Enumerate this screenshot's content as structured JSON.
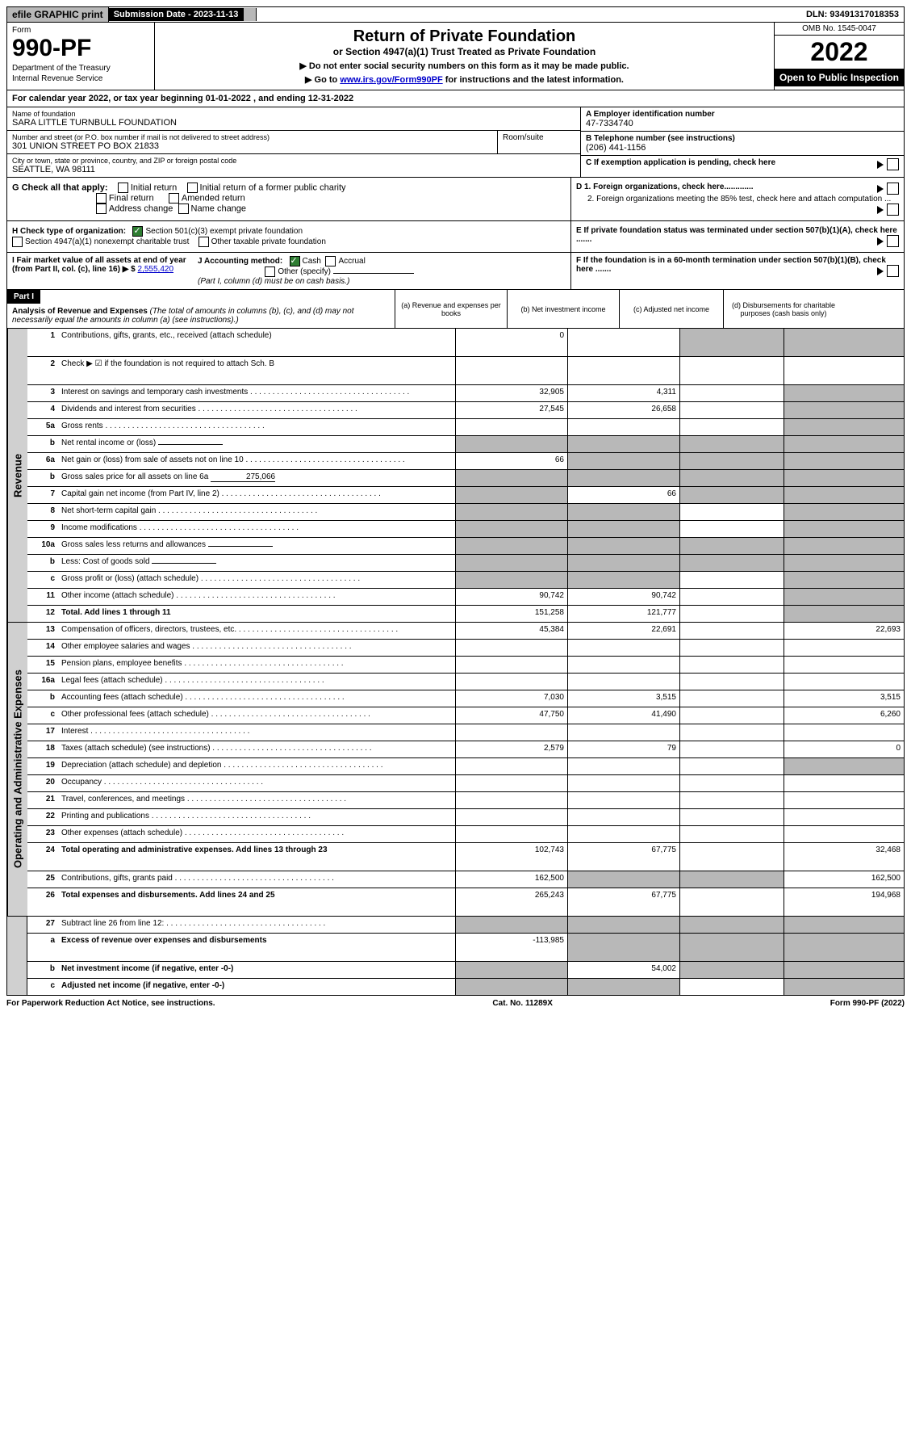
{
  "topbar": {
    "efile": "efile GRAPHIC print",
    "sub_label": "Submission Date - 2023-11-13",
    "dln": "DLN: 93491317018353"
  },
  "header": {
    "form_label": "Form",
    "form_number": "990-PF",
    "dept": "Department of the Treasury",
    "irs": "Internal Revenue Service",
    "title": "Return of Private Foundation",
    "subtitle": "or Section 4947(a)(1) Trust Treated as Private Foundation",
    "note1": "▶ Do not enter social security numbers on this form as it may be made public.",
    "note2_pre": "▶ Go to ",
    "note2_link": "www.irs.gov/Form990PF",
    "note2_post": " for instructions and the latest information.",
    "omb": "OMB No. 1545-0047",
    "year": "2022",
    "open": "Open to Public Inspection"
  },
  "calyear": "For calendar year 2022, or tax year beginning 01-01-2022                      , and ending 12-31-2022",
  "info": {
    "name_label": "Name of foundation",
    "name": "SARA LITTLE TURNBULL FOUNDATION",
    "addr_label": "Number and street (or P.O. box number if mail is not delivered to street address)",
    "addr": "301 UNION STREET PO BOX 21833",
    "room_label": "Room/suite",
    "city_label": "City or town, state or province, country, and ZIP or foreign postal code",
    "city": "SEATTLE, WA  98111",
    "a_label": "A Employer identification number",
    "a_value": "47-7334740",
    "b_label": "B Telephone number (see instructions)",
    "b_value": "(206) 441-1156",
    "c_label": "C If exemption application is pending, check here"
  },
  "checks": {
    "g_label": "G Check all that apply:",
    "g1": "Initial return",
    "g2": "Initial return of a former public charity",
    "g3": "Final return",
    "g4": "Amended return",
    "g5": "Address change",
    "g6": "Name change",
    "h_label": "H Check type of organization:",
    "h1": "Section 501(c)(3) exempt private foundation",
    "h2": "Section 4947(a)(1) nonexempt charitable trust",
    "h3": "Other taxable private foundation",
    "i_label": "I Fair market value of all assets at end of year (from Part II, col. (c), line 16) ▶ $",
    "i_value": "2,555,420",
    "j_label": "J Accounting method:",
    "j1": "Cash",
    "j2": "Accrual",
    "j3": "Other (specify)",
    "j_note": "(Part I, column (d) must be on cash basis.)",
    "d1": "D 1. Foreign organizations, check here.............",
    "d2": "2. Foreign organizations meeting the 85% test, check here and attach computation ...",
    "e": "E If private foundation status was terminated under section 507(b)(1)(A), check here .......",
    "f": "F If the foundation is in a 60-month termination under section 507(b)(1)(B), check here .......",
    "arrow": "▶"
  },
  "part1": {
    "label": "Part I",
    "title": "Analysis of Revenue and Expenses",
    "title_note": " (The total of amounts in columns (b), (c), and (d) may not necessarily equal the amounts in column (a) (see instructions).)",
    "col_a": "(a)  Revenue and expenses per books",
    "col_b": "(b)  Net investment income",
    "col_c": "(c)  Adjusted net income",
    "col_d": "(d)  Disbursements for charitable purposes (cash basis only)"
  },
  "sections": {
    "revenue": "Revenue",
    "expenses": "Operating and Administrative Expenses"
  },
  "rows": [
    {
      "num": "1",
      "desc": "Contributions, gifts, grants, etc., received (attach schedule)",
      "a": "0",
      "b": "",
      "c": "s",
      "d": "s",
      "tall": true
    },
    {
      "num": "2",
      "desc": "Check ▶ ☑ if the foundation is not required to attach Sch. B",
      "nobord": true,
      "tall": true,
      "allshade": true
    },
    {
      "num": "3",
      "desc": "Interest on savings and temporary cash investments",
      "a": "32,905",
      "b": "4,311",
      "c": "",
      "d": "s"
    },
    {
      "num": "4",
      "desc": "Dividends and interest from securities",
      "a": "27,545",
      "b": "26,658",
      "c": "",
      "d": "s"
    },
    {
      "num": "5a",
      "desc": "Gross rents",
      "a": "",
      "b": "",
      "c": "",
      "d": "s"
    },
    {
      "num": "b",
      "desc": "Net rental income or (loss)",
      "a": "s",
      "b": "s",
      "c": "s",
      "d": "s",
      "inline": true
    },
    {
      "num": "6a",
      "desc": "Net gain or (loss) from sale of assets not on line 10",
      "a": "66",
      "b": "s",
      "c": "s",
      "d": "s"
    },
    {
      "num": "b",
      "desc": "Gross sales price for all assets on line 6a",
      "a": "s",
      "b": "s",
      "c": "s",
      "d": "s",
      "inline": true,
      "inline_val": "275,066"
    },
    {
      "num": "7",
      "desc": "Capital gain net income (from Part IV, line 2)",
      "a": "s",
      "b": "66",
      "c": "s",
      "d": "s"
    },
    {
      "num": "8",
      "desc": "Net short-term capital gain",
      "a": "s",
      "b": "s",
      "c": "",
      "d": "s"
    },
    {
      "num": "9",
      "desc": "Income modifications",
      "a": "s",
      "b": "s",
      "c": "",
      "d": "s"
    },
    {
      "num": "10a",
      "desc": "Gross sales less returns and allowances",
      "a": "s",
      "b": "s",
      "c": "s",
      "d": "s",
      "inline": true
    },
    {
      "num": "b",
      "desc": "Less: Cost of goods sold",
      "a": "s",
      "b": "s",
      "c": "s",
      "d": "s",
      "inline": true
    },
    {
      "num": "c",
      "desc": "Gross profit or (loss) (attach schedule)",
      "a": "s",
      "b": "s",
      "c": "",
      "d": "s"
    },
    {
      "num": "11",
      "desc": "Other income (attach schedule)",
      "a": "90,742",
      "b": "90,742",
      "c": "",
      "d": "s"
    },
    {
      "num": "12",
      "desc": "Total. Add lines 1 through 11",
      "a": "151,258",
      "b": "121,777",
      "c": "",
      "d": "s",
      "bold": true
    }
  ],
  "exp_rows": [
    {
      "num": "13",
      "desc": "Compensation of officers, directors, trustees, etc.",
      "a": "45,384",
      "b": "22,691",
      "c": "",
      "d": "22,693"
    },
    {
      "num": "14",
      "desc": "Other employee salaries and wages",
      "a": "",
      "b": "",
      "c": "",
      "d": ""
    },
    {
      "num": "15",
      "desc": "Pension plans, employee benefits",
      "a": "",
      "b": "",
      "c": "",
      "d": ""
    },
    {
      "num": "16a",
      "desc": "Legal fees (attach schedule)",
      "a": "",
      "b": "",
      "c": "",
      "d": ""
    },
    {
      "num": "b",
      "desc": "Accounting fees (attach schedule)",
      "a": "7,030",
      "b": "3,515",
      "c": "",
      "d": "3,515"
    },
    {
      "num": "c",
      "desc": "Other professional fees (attach schedule)",
      "a": "47,750",
      "b": "41,490",
      "c": "",
      "d": "6,260"
    },
    {
      "num": "17",
      "desc": "Interest",
      "a": "",
      "b": "",
      "c": "",
      "d": ""
    },
    {
      "num": "18",
      "desc": "Taxes (attach schedule) (see instructions)",
      "a": "2,579",
      "b": "79",
      "c": "",
      "d": "0"
    },
    {
      "num": "19",
      "desc": "Depreciation (attach schedule) and depletion",
      "a": "",
      "b": "",
      "c": "",
      "d": "s"
    },
    {
      "num": "20",
      "desc": "Occupancy",
      "a": "",
      "b": "",
      "c": "",
      "d": ""
    },
    {
      "num": "21",
      "desc": "Travel, conferences, and meetings",
      "a": "",
      "b": "",
      "c": "",
      "d": ""
    },
    {
      "num": "22",
      "desc": "Printing and publications",
      "a": "",
      "b": "",
      "c": "",
      "d": ""
    },
    {
      "num": "23",
      "desc": "Other expenses (attach schedule)",
      "a": "",
      "b": "",
      "c": "",
      "d": ""
    },
    {
      "num": "24",
      "desc": "Total operating and administrative expenses. Add lines 13 through 23",
      "a": "102,743",
      "b": "67,775",
      "c": "",
      "d": "32,468",
      "bold": true,
      "tall": true
    },
    {
      "num": "25",
      "desc": "Contributions, gifts, grants paid",
      "a": "162,500",
      "b": "s",
      "c": "s",
      "d": "162,500"
    },
    {
      "num": "26",
      "desc": "Total expenses and disbursements. Add lines 24 and 25",
      "a": "265,243",
      "b": "67,775",
      "c": "",
      "d": "194,968",
      "bold": true,
      "tall": true
    }
  ],
  "final_rows": [
    {
      "num": "27",
      "desc": "Subtract line 26 from line 12:",
      "a": "s",
      "b": "s",
      "c": "s",
      "d": "s"
    },
    {
      "num": "a",
      "desc": "Excess of revenue over expenses and disbursements",
      "a": "-113,985",
      "b": "s",
      "c": "s",
      "d": "s",
      "bold": true,
      "tall": true
    },
    {
      "num": "b",
      "desc": "Net investment income (if negative, enter -0-)",
      "a": "s",
      "b": "54,002",
      "c": "s",
      "d": "s",
      "bold": true
    },
    {
      "num": "c",
      "desc": "Adjusted net income (if negative, enter -0-)",
      "a": "s",
      "b": "s",
      "c": "",
      "d": "s",
      "bold": true
    }
  ],
  "footer": {
    "left": "For Paperwork Reduction Act Notice, see instructions.",
    "center": "Cat. No. 11289X",
    "right": "Form 990-PF (2022)"
  }
}
